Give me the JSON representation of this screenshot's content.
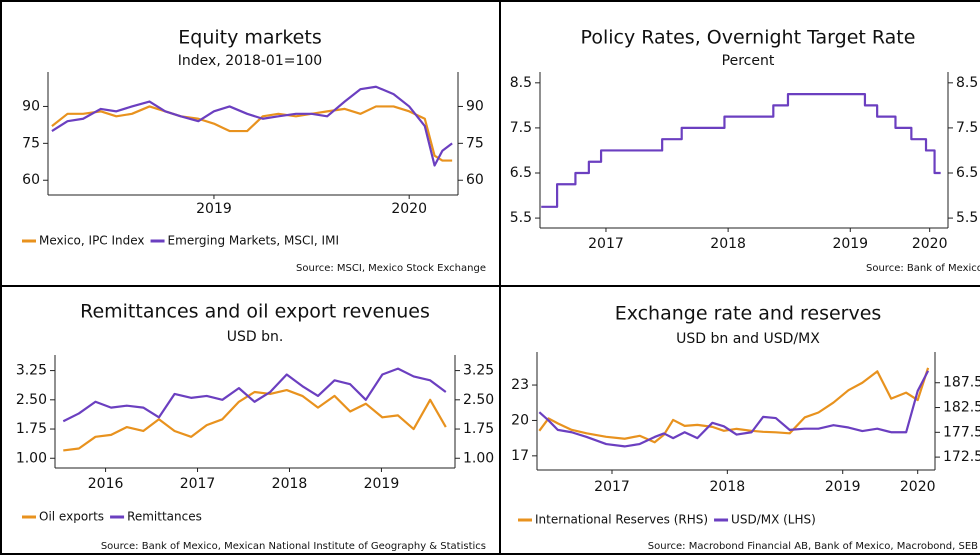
{
  "chart_data": [
    {
      "type": "line",
      "title": "Equity markets",
      "subtitle": "Index, 2018-01=100",
      "source": "Source: MSCI, Mexico Stock Exchange",
      "x": [
        2018.17,
        2018.25,
        2018.33,
        2018.42,
        2018.5,
        2018.58,
        2018.67,
        2018.75,
        2018.83,
        2018.92,
        2019.0,
        2019.08,
        2019.17,
        2019.25,
        2019.33,
        2019.42,
        2019.5,
        2019.58,
        2019.67,
        2019.75,
        2019.83,
        2019.92,
        2020.0,
        2020.08,
        2020.13,
        2020.17,
        2020.22
      ],
      "series": [
        {
          "name": "Mexico, IPC Index",
          "color": "#e8921e",
          "values": [
            82,
            87,
            87,
            88,
            86,
            87,
            90,
            88,
            86,
            85,
            83,
            80,
            80,
            86,
            87,
            86,
            87,
            88,
            89,
            87,
            90,
            90,
            88,
            85,
            70,
            68,
            68
          ]
        },
        {
          "name": "Emerging Markets, MSCI, IMI",
          "color": "#6b3fc0",
          "values": [
            80,
            84,
            85,
            89,
            88,
            90,
            92,
            88,
            86,
            84,
            88,
            90,
            87,
            85,
            86,
            87,
            87,
            86,
            92,
            97,
            98,
            95,
            90,
            82,
            66,
            72,
            75
          ]
        }
      ],
      "xlim": [
        2018.15,
        2020.25
      ],
      "xticks": [
        2019,
        2020
      ],
      "ylim": [
        54,
        104
      ],
      "yticks": [
        90,
        75,
        60
      ]
    },
    {
      "type": "line",
      "step": true,
      "title": "Policy Rates, Overnight Target Rate",
      "subtitle": "Percent",
      "source": "Source: Bank of Mexico",
      "x": [
        2016.97,
        2017.1,
        2017.25,
        2017.36,
        2017.46,
        2017.96,
        2018.12,
        2018.47,
        2018.87,
        2018.99,
        2019.62,
        2019.72,
        2019.87,
        2020.0,
        2020.12,
        2020.19,
        2020.24
      ],
      "series": [
        {
          "name": "Overnight Target Rate",
          "color": "#6b3fc0",
          "values": [
            5.75,
            6.25,
            6.5,
            6.75,
            7.0,
            7.25,
            7.5,
            7.75,
            8.0,
            8.25,
            8.0,
            7.75,
            7.5,
            7.25,
            7.0,
            6.5,
            6.5
          ]
        }
      ],
      "xlim": [
        2016.96,
        2020.3
      ],
      "xticks": [
        {
          "value": 2017.5,
          "label": "2017"
        },
        {
          "value": 2018.5,
          "label": "2018"
        },
        {
          "value": 2019.5,
          "label": "2019"
        },
        {
          "value": 2020.15,
          "label": "2020"
        }
      ],
      "ylim": [
        5.28,
        8.74
      ],
      "yticks": [
        8.5,
        7.5,
        6.5,
        5.5
      ],
      "legend": false
    },
    {
      "type": "line",
      "title": "Remittances and oil export revenues",
      "subtitle": "USD bn.",
      "source": "Source: Bank of Mexico, Mexican National Institute of Geography & Statistics",
      "x": [
        2016.04,
        2016.21,
        2016.39,
        2016.56,
        2016.73,
        2016.91,
        2017.08,
        2017.25,
        2017.43,
        2017.6,
        2017.77,
        2017.95,
        2018.12,
        2018.29,
        2018.47,
        2018.64,
        2018.81,
        2018.99,
        2019.16,
        2019.33,
        2019.51,
        2019.68,
        2019.85,
        2020.03,
        2020.2
      ],
      "series": [
        {
          "name": "Oil exports",
          "color": "#e8921e",
          "values": [
            1.2,
            1.25,
            1.55,
            1.6,
            1.8,
            1.7,
            2.0,
            1.7,
            1.55,
            1.85,
            2.0,
            2.45,
            2.7,
            2.65,
            2.75,
            2.6,
            2.3,
            2.6,
            2.2,
            2.4,
            2.05,
            2.1,
            1.75,
            2.5,
            1.8
          ]
        },
        {
          "name": "Remittances",
          "color": "#6b3fc0",
          "values": [
            1.95,
            2.15,
            2.45,
            2.3,
            2.35,
            2.3,
            2.05,
            2.65,
            2.55,
            2.6,
            2.5,
            2.8,
            2.45,
            2.7,
            3.15,
            2.85,
            2.6,
            3.0,
            2.9,
            2.5,
            3.15,
            3.3,
            3.1,
            3.0,
            2.7
          ]
        }
      ],
      "xlim": [
        2015.95,
        2020.3
      ],
      "xticks": [
        {
          "value": 2016.5,
          "label": "2016"
        },
        {
          "value": 2017.5,
          "label": "2017"
        },
        {
          "value": 2018.5,
          "label": "2018"
        },
        {
          "value": 2019.5,
          "label": "2019"
        }
      ],
      "ylim": [
        0.75,
        3.65
      ],
      "yticks": [
        3.25,
        {
          "value": 2.5,
          "label": "2.50"
        },
        1.75,
        {
          "value": 1,
          "label": "1.00"
        }
      ]
    },
    {
      "type": "line",
      "title": "Exchange rate and reserves",
      "subtitle": "USD bn and USD/MX",
      "source": "Source: Macrobond Financial AB, Bank of Mexico, Macrobond, SEB",
      "x": [
        2016.87,
        2016.95,
        2017.03,
        2017.15,
        2017.28,
        2017.45,
        2017.61,
        2017.74,
        2017.87,
        2017.95,
        2018.03,
        2018.13,
        2018.24,
        2018.37,
        2018.47,
        2018.58,
        2018.71,
        2018.81,
        2018.92,
        2019.04,
        2019.17,
        2019.29,
        2019.42,
        2019.55,
        2019.67,
        2019.8,
        2019.92,
        2020.05,
        2020.15,
        2020.24
      ],
      "series": [
        {
          "name": "International Reserves (RHS)",
          "color": "#e8921e",
          "axis": "y2",
          "values": [
            177.8,
            180.3,
            179.3,
            178.0,
            177.3,
            176.6,
            176.2,
            176.8,
            175.5,
            177.0,
            180.0,
            178.8,
            179.0,
            178.6,
            177.8,
            178.2,
            177.8,
            177.6,
            177.5,
            177.3,
            180.5,
            181.5,
            183.5,
            186.0,
            187.5,
            189.8,
            184.3,
            185.5,
            184.0,
            190.5
          ]
        },
        {
          "name": "USD/MX (LHS)",
          "color": "#6b3fc0",
          "values": [
            20.7,
            20.0,
            19.2,
            19.0,
            18.6,
            18.0,
            17.8,
            18.0,
            18.6,
            18.9,
            18.5,
            19.0,
            18.5,
            19.8,
            19.5,
            18.8,
            19.0,
            20.3,
            20.2,
            19.2,
            19.3,
            19.3,
            19.6,
            19.4,
            19.1,
            19.3,
            19.0,
            19.0,
            22.5,
            24.2
          ]
        }
      ],
      "xlim": [
        2016.85,
        2020.3
      ],
      "xticks": [
        {
          "value": 2017.5,
          "label": "2017"
        },
        {
          "value": 2018.5,
          "label": "2018"
        },
        {
          "value": 2019.5,
          "label": "2019"
        },
        {
          "value": 2020.15,
          "label": "2020"
        }
      ],
      "ylim": [
        15.8,
        25.8
      ],
      "yticks": [
        23,
        20,
        17
      ],
      "y2lim": [
        169.9,
        193.7
      ],
      "y2ticks": [
        187.5,
        182.5,
        177.5,
        172.5
      ]
    }
  ]
}
